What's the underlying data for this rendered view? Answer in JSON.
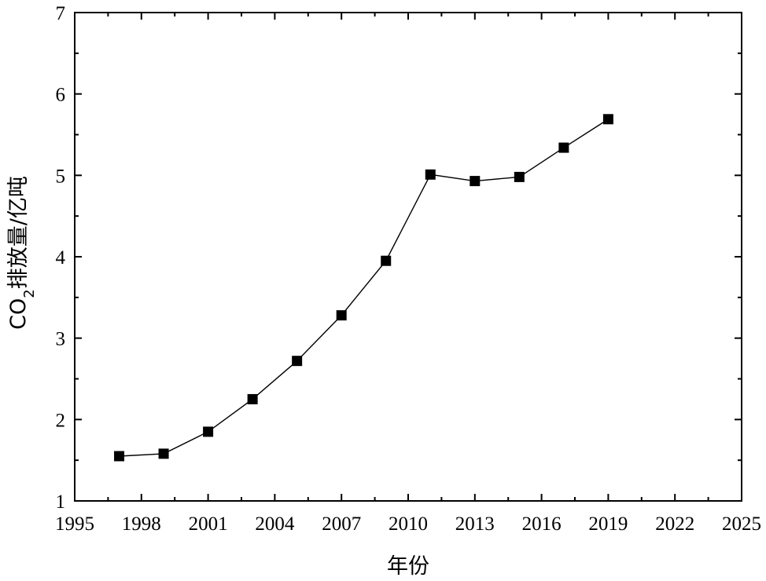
{
  "chart_data": {
    "type": "line",
    "title": "",
    "xlabel": "年份",
    "ylabel": {
      "prefix": "CO",
      "subscript": "2",
      "suffix": "排放量/亿吨"
    },
    "xlim": [
      1995,
      2025
    ],
    "ylim": [
      1,
      7
    ],
    "xticks": [
      1995,
      1998,
      2001,
      2004,
      2007,
      2010,
      2013,
      2016,
      2019,
      2022,
      2025
    ],
    "yticks": [
      1,
      2,
      3,
      4,
      5,
      6,
      7
    ],
    "x_minor_step": 1.5,
    "y_minor_step": 0.5,
    "grid": false,
    "marker": "square",
    "x": [
      1997,
      1999,
      2001,
      2003,
      2005,
      2007,
      2009,
      2011,
      2013,
      2015,
      2017,
      2019
    ],
    "series": [
      {
        "values": [
          1.55,
          1.58,
          1.85,
          2.25,
          2.72,
          3.28,
          3.95,
          5.01,
          4.93,
          4.98,
          5.34,
          5.69
        ]
      }
    ]
  }
}
